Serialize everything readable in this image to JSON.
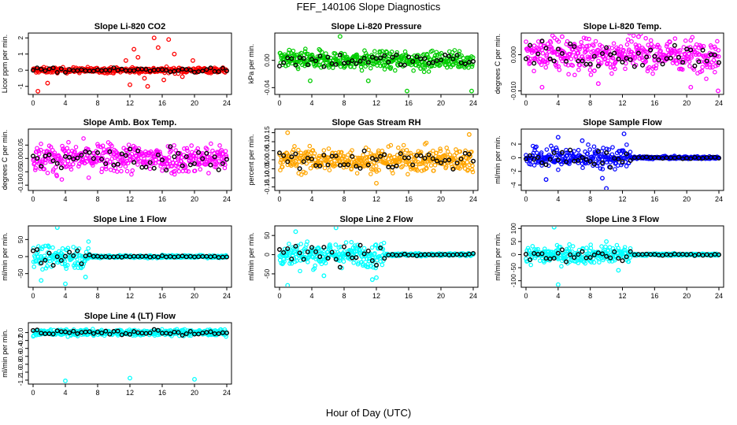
{
  "title": "FEF_140106  Slope Diagnostics",
  "xlabel": "Hour of Day (UTC)",
  "colors": {
    "red": "#ff0000",
    "green": "#00cc00",
    "magenta": "#ff00ff",
    "orange": "#ffa500",
    "blue": "#0000ff",
    "cyan": "#00ffff",
    "black": "#000000"
  },
  "chart_data": [
    {
      "type": "scatter",
      "title": "Slope Li-820 CO2",
      "ylabel": "Licor ppm per min.",
      "color": "red",
      "xlim": [
        0,
        24
      ],
      "ylim": [
        -1.5,
        2.3
      ],
      "xticks": [
        "0",
        "4",
        "8",
        "12",
        "16",
        "20",
        "24"
      ],
      "yticks": [
        {
          "v": -1,
          "label": "-1"
        },
        {
          "v": 0,
          "label": "0"
        },
        {
          "v": 1,
          "label": "1"
        },
        {
          "v": 2,
          "label": "2"
        }
      ],
      "spread": 0.15,
      "outliers": [
        [
          1.8,
          -0.8
        ],
        [
          11.5,
          0.6
        ],
        [
          12.5,
          1.3
        ],
        [
          13.0,
          0.8
        ],
        [
          14.2,
          -1.0
        ],
        [
          15.0,
          2.0
        ],
        [
          15.5,
          1.4
        ],
        [
          16.2,
          -0.6
        ],
        [
          16.8,
          1.9
        ],
        [
          17.5,
          1.0
        ],
        [
          13.8,
          -0.5
        ],
        [
          18.5,
          -0.4
        ],
        [
          19.8,
          0.6
        ],
        [
          12.0,
          -0.9
        ],
        [
          0.6,
          -1.3
        ]
      ]
    },
    {
      "type": "scatter",
      "title": "Slope Li-820 Pressure",
      "ylabel": "kPa per min.",
      "color": "green",
      "xlim": [
        0,
        24
      ],
      "ylim": [
        -0.05,
        0.04
      ],
      "xticks": [
        "0",
        "4",
        "8",
        "12",
        "16",
        "20",
        "24"
      ],
      "yticks": [
        {
          "v": -0.04,
          "label": "-0.04"
        },
        {
          "v": 0,
          "label": "0.00"
        }
      ],
      "spread": 0.012,
      "outliers": [
        [
          7.5,
          0.035
        ],
        [
          15.8,
          -0.045
        ],
        [
          3.8,
          -0.03
        ],
        [
          23.8,
          -0.045
        ],
        [
          1.2,
          0.015
        ],
        [
          11.0,
          -0.03
        ]
      ]
    },
    {
      "type": "scatter",
      "title": "Slope Li-820 Temp.",
      "ylabel": "degrees C per min.",
      "color": "magenta",
      "xlim": [
        0,
        24
      ],
      "ylim": [
        -0.011,
        0.006
      ],
      "xticks": [
        "0",
        "4",
        "8",
        "12",
        "16",
        "20",
        "24"
      ],
      "yticks": [
        {
          "v": -0.01,
          "label": "-0.010"
        },
        {
          "v": 0,
          "label": "0.000"
        }
      ],
      "spread": 0.004,
      "outliers": [
        [
          2.0,
          -0.009
        ],
        [
          4.5,
          0.005
        ],
        [
          9.0,
          -0.008
        ],
        [
          23.9,
          -0.01
        ],
        [
          20.5,
          -0.009
        ],
        [
          14.0,
          0.005
        ]
      ]
    },
    {
      "type": "scatter",
      "title": "Slope Amb. Box Temp.",
      "ylabel": "degrees C per min.",
      "color": "magenta",
      "xlim": [
        0,
        24
      ],
      "ylim": [
        -0.12,
        0.11
      ],
      "xticks": [
        "0",
        "4",
        "8",
        "12",
        "16",
        "20",
        "24"
      ],
      "yticks": [
        {
          "v": -0.1,
          "label": "-0.10"
        },
        {
          "v": -0.05,
          "label": "-0.05"
        },
        {
          "v": 0,
          "label": "0.00"
        },
        {
          "v": 0.05,
          "label": "0.05"
        }
      ],
      "spread": 0.05,
      "outliers": []
    },
    {
      "type": "scatter",
      "title": "Slope Gas Stream RH",
      "ylabel": "percent per min.",
      "color": "orange",
      "xlim": [
        0,
        24
      ],
      "ylim": [
        -0.17,
        0.17
      ],
      "xticks": [
        "0",
        "4",
        "8",
        "12",
        "16",
        "20",
        "24"
      ],
      "yticks": [
        {
          "v": -0.15,
          "label": "-0.15"
        },
        {
          "v": -0.1,
          "label": "-0.10"
        },
        {
          "v": -0.05,
          "label": "-0.05"
        },
        {
          "v": 0,
          "label": "0.00"
        },
        {
          "v": 0.05,
          "label": "0.05"
        },
        {
          "v": 0.1,
          "label": "0.10"
        },
        {
          "v": 0.15,
          "label": "0.15"
        }
      ],
      "spread": 0.06,
      "outliers": [
        [
          1.0,
          0.15
        ],
        [
          23.5,
          0.14
        ],
        [
          12.0,
          -0.13
        ]
      ]
    },
    {
      "type": "scatter",
      "title": "Slope Sample Flow",
      "ylabel": "ml/min per min.",
      "color": "blue",
      "xlim": [
        0,
        24
      ],
      "ylim": [
        -4.8,
        4.2
      ],
      "xticks": [
        "0",
        "4",
        "8",
        "12",
        "16",
        "20",
        "24"
      ],
      "yticks": [
        {
          "v": -4,
          "label": "-4"
        },
        {
          "v": -2,
          "label": "-2"
        },
        {
          "v": 0,
          "label": "0"
        },
        {
          "v": 2,
          "label": "2"
        }
      ],
      "spread": 1.4,
      "outliers": [
        [
          4.0,
          3.0
        ],
        [
          10.0,
          -4.5
        ],
        [
          12.2,
          3.5
        ],
        [
          7.0,
          2.5
        ],
        [
          2.5,
          -3.2
        ],
        [
          9.5,
          -3.0
        ]
      ],
      "quiet_after": 13
    },
    {
      "type": "scatter",
      "title": "Slope Line 1 Flow",
      "ylabel": "ml/min per min.",
      "color": "cyan",
      "xlim": [
        0,
        24
      ],
      "ylim": [
        -90,
        90
      ],
      "xticks": [
        "0",
        "4",
        "8",
        "12",
        "16",
        "20",
        "24"
      ],
      "yticks": [
        {
          "v": -50,
          "label": "-50"
        },
        {
          "v": 0,
          "label": "0"
        },
        {
          "v": 50,
          "label": "50"
        }
      ],
      "spread": 30,
      "outliers": [
        [
          3.0,
          85
        ],
        [
          4.0,
          -80
        ],
        [
          1.0,
          -70
        ],
        [
          6.5,
          -60
        ]
      ],
      "quiet_after": 7
    },
    {
      "type": "scatter",
      "title": "Slope Line 2 Flow",
      "ylabel": "ml/min per min.",
      "color": "cyan",
      "xlim": [
        0,
        24
      ],
      "ylim": [
        -85,
        75
      ],
      "xticks": [
        "0",
        "4",
        "8",
        "12",
        "16",
        "20",
        "24"
      ],
      "yticks": [
        {
          "v": -50,
          "label": "-50"
        },
        {
          "v": 0,
          "label": "0"
        },
        {
          "v": 50,
          "label": "50"
        }
      ],
      "spread": 28,
      "outliers": [
        [
          2.0,
          60
        ],
        [
          7.0,
          70
        ],
        [
          1.0,
          -80
        ],
        [
          11.5,
          -65
        ],
        [
          12.0,
          -60
        ],
        [
          5.5,
          -55
        ]
      ],
      "quiet_after": 13
    },
    {
      "type": "scatter",
      "title": "Slope Line 3 Flow",
      "ylabel": "ml/min per min.",
      "color": "cyan",
      "xlim": [
        0,
        24
      ],
      "ylim": [
        -125,
        110
      ],
      "xticks": [
        "0",
        "4",
        "8",
        "12",
        "16",
        "20",
        "24"
      ],
      "yticks": [
        {
          "v": -100,
          "label": "-100"
        },
        {
          "v": -50,
          "label": "-50"
        },
        {
          "v": 0,
          "label": "0"
        },
        {
          "v": 50,
          "label": "50"
        },
        {
          "v": 100,
          "label": "100"
        }
      ],
      "spread": 30,
      "outliers": [
        [
          3.5,
          105
        ],
        [
          4.0,
          -115
        ],
        [
          11.5,
          -60
        ],
        [
          10.0,
          50
        ]
      ],
      "quiet_after": 13
    },
    {
      "type": "scatter",
      "title": "Slope Line 4 (LT) Flow",
      "ylabel": "ml/min per min.",
      "color": "cyan",
      "xlim": [
        0,
        24
      ],
      "ylim": [
        -1.3,
        0.25
      ],
      "xticks": [
        "0",
        "4",
        "8",
        "12",
        "16",
        "20",
        "24"
      ],
      "yticks": [
        {
          "v": -1.2,
          "label": "-1.2"
        },
        {
          "v": -1.0,
          "label": "-1.0"
        },
        {
          "v": -0.8,
          "label": "-0.8"
        },
        {
          "v": -0.6,
          "label": "-0.6"
        },
        {
          "v": -0.4,
          "label": "-0.4"
        },
        {
          "v": -0.2,
          "label": "-0.2"
        },
        {
          "v": 0.0,
          "label": "0.0"
        }
      ],
      "spread": 0.07,
      "outliers": [
        [
          4.0,
          -1.22
        ],
        [
          12.0,
          -1.15
        ],
        [
          20.0,
          -1.18
        ]
      ]
    }
  ]
}
